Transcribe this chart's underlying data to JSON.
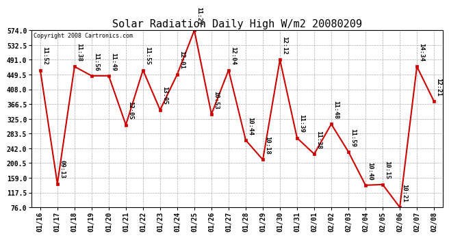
{
  "title": "Solar Radiation Daily High W/m2 20080209",
  "copyright": "Copyright 2008 Cartronics.com",
  "dates": [
    "01/16",
    "01/17",
    "01/18",
    "01/19",
    "01/20",
    "01/21",
    "01/22",
    "01/23",
    "01/24",
    "01/25",
    "01/26",
    "01/27",
    "01/28",
    "01/29",
    "01/30",
    "01/31",
    "02/01",
    "02/02",
    "02/03",
    "02/04",
    "02/05",
    "02/06",
    "02/07",
    "02/08"
  ],
  "values": [
    462,
    142,
    472,
    446,
    446,
    308,
    462,
    350,
    450,
    574,
    338,
    462,
    265,
    210,
    491,
    271,
    226,
    310,
    232,
    138,
    140,
    76,
    472,
    374
  ],
  "time_labels": [
    "11:52",
    "09:13",
    "11:38",
    "11:56",
    "11:49",
    "12:05",
    "11:55",
    "13:05",
    "12:01",
    "11:27",
    "10:53",
    "12:04",
    "10:44",
    "10:18",
    "12:12",
    "11:39",
    "11:38",
    "11:48",
    "11:59",
    "10:40",
    "10:15",
    "10:21",
    "14:34",
    "12:21"
  ],
  "line_color": "#cc0000",
  "marker_color": "#cc0000",
  "bg_color": "#ffffff",
  "grid_color": "#aaaaaa",
  "ylim_low": 76.0,
  "ylim_high": 574.0,
  "yticks": [
    76.0,
    117.5,
    159.0,
    200.5,
    242.0,
    283.5,
    325.0,
    366.5,
    408.0,
    449.5,
    491.0,
    532.5,
    574.0
  ],
  "title_fontsize": 11,
  "tick_fontsize": 7,
  "time_fontsize": 6.5,
  "copyright_fontsize": 6
}
